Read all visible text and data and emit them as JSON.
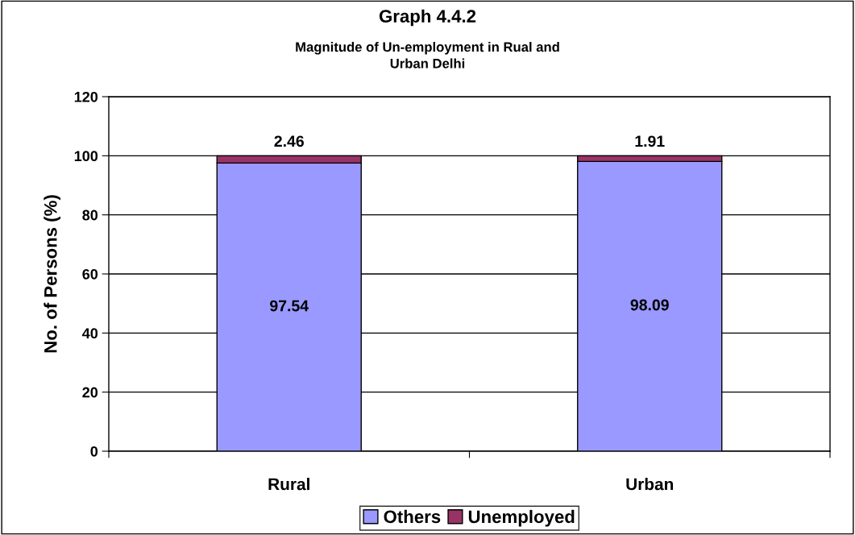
{
  "chart_data": {
    "type": "bar",
    "title": "Graph 4.4.2",
    "subtitle": "Magnitude of Un-employment in Rual and\nUrban Delhi",
    "ylabel": "No. of Persons (%)",
    "categories": [
      "Rural",
      "Urban"
    ],
    "stacked": true,
    "series": [
      {
        "name": "Others",
        "color": "#9999ff",
        "values": [
          97.54,
          98.09
        ]
      },
      {
        "name": "Unemployed",
        "color": "#993366",
        "values": [
          2.46,
          1.91
        ]
      }
    ],
    "ylim": [
      0,
      120
    ],
    "yticks": [
      0,
      20,
      40,
      60,
      80,
      100,
      120
    ],
    "grid": "y",
    "legend": "bottom",
    "data_labels": true
  }
}
